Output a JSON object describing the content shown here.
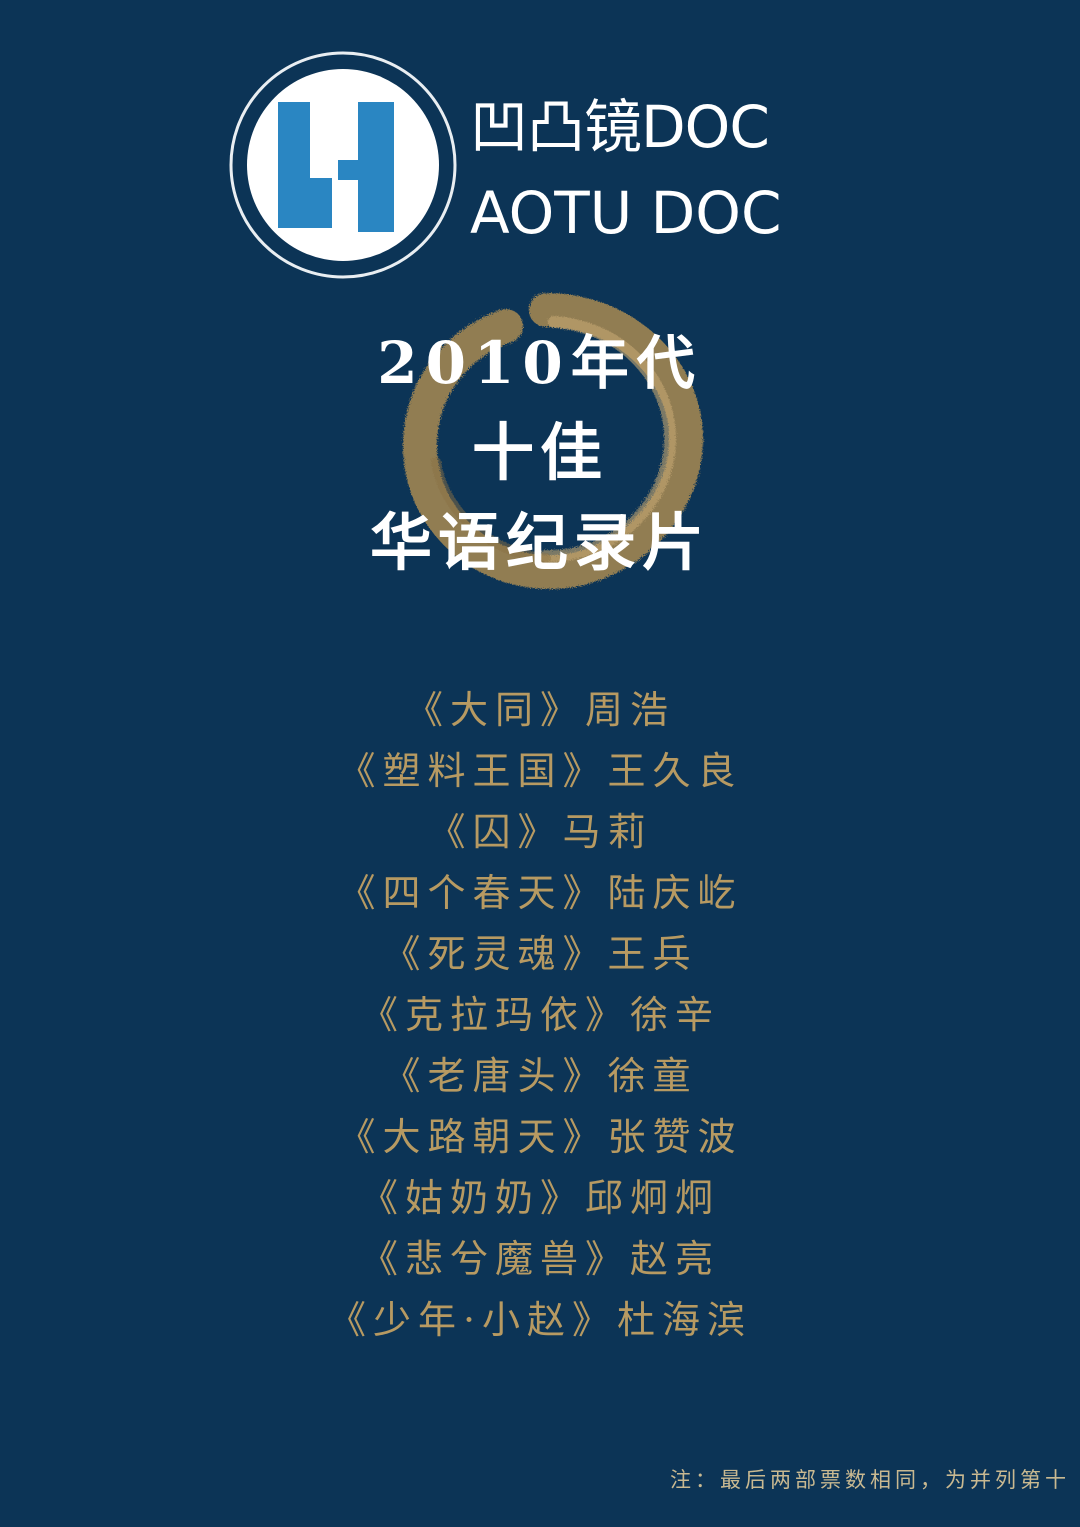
{
  "logo": {
    "name_cn": "凹凸镜DOC",
    "name_en": "AOTU DOC",
    "emblem_icon": "aotu-logo-emblem-icon"
  },
  "title": {
    "line1": "2010年代",
    "line2": "十佳",
    "line3": "华语纪录片"
  },
  "films": [
    "《大同》周浩",
    "《塑料王国》王久良",
    "《囚》马莉",
    "《四个春天》陆庆屹",
    "《死灵魂》王兵",
    "《克拉玛依》徐辛",
    "《老唐头》徐童",
    "《大路朝天》张赞波",
    "《姑奶奶》邱炯炯",
    "《悲兮魔兽》赵亮",
    "《少年·小赵》杜海滨"
  ],
  "footnote": "注：最后两部票数相同，为并列第十",
  "colors": {
    "background": "#0c3456",
    "gold": "#b79a62",
    "logo_blue": "#2a86c2"
  }
}
